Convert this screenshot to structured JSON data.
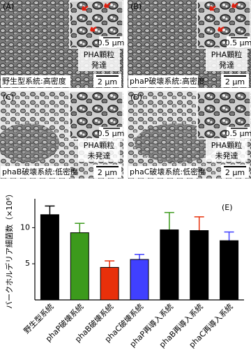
{
  "panels": [
    {
      "label": "(A)",
      "note": [
        "PHA顆粒",
        "発達"
      ],
      "inset_scale": "0.5 μm",
      "caption": "野生型系統:高密度",
      "scale": "2 μm"
    },
    {
      "label": "(B)",
      "note": [
        "PHA顆粒",
        "発達"
      ],
      "inset_scale": "0.5 μm",
      "caption": "phaP破壊系統:高密度",
      "scale": "2 μm"
    },
    {
      "label": "(C)",
      "note": [
        "PHA顆粒",
        "未発達"
      ],
      "inset_scale": "0.5 μm",
      "caption": "phaB破壊系統:低密度",
      "scale": "2 μm"
    },
    {
      "label": "(D)",
      "note": [
        "PHA顆粒",
        "未発達"
      ],
      "inset_scale": "0.5 μm",
      "caption": "phaC破壊系統:低密度",
      "scale": "2 μm"
    }
  ],
  "chart_data": {
    "type": "bar",
    "panel_label": "(E)",
    "y_label": "バークホルデリア細菌数（×10⁶）",
    "categories": [
      "野生型系統",
      "phaP破壊系統",
      "phaB破壊系統",
      "phaC破壊系統",
      "phaP再導入系統",
      "phaB再導入系統",
      "phaC再導入系統"
    ],
    "values": [
      11.8,
      9.3,
      4.5,
      5.6,
      9.7,
      9.6,
      8.2
    ],
    "errors": [
      1.2,
      1.3,
      0.9,
      0.7,
      2.4,
      1.9,
      1.2
    ],
    "colors": [
      "#000000",
      "#3c9a1c",
      "#e8300a",
      "#4040ff",
      "#3c9a1c",
      "#e8300a",
      "#4040ff"
    ],
    "hatched": [
      false,
      false,
      false,
      false,
      true,
      true,
      true
    ],
    "ylim": [
      0,
      14
    ],
    "yticks": [
      5,
      10
    ]
  }
}
